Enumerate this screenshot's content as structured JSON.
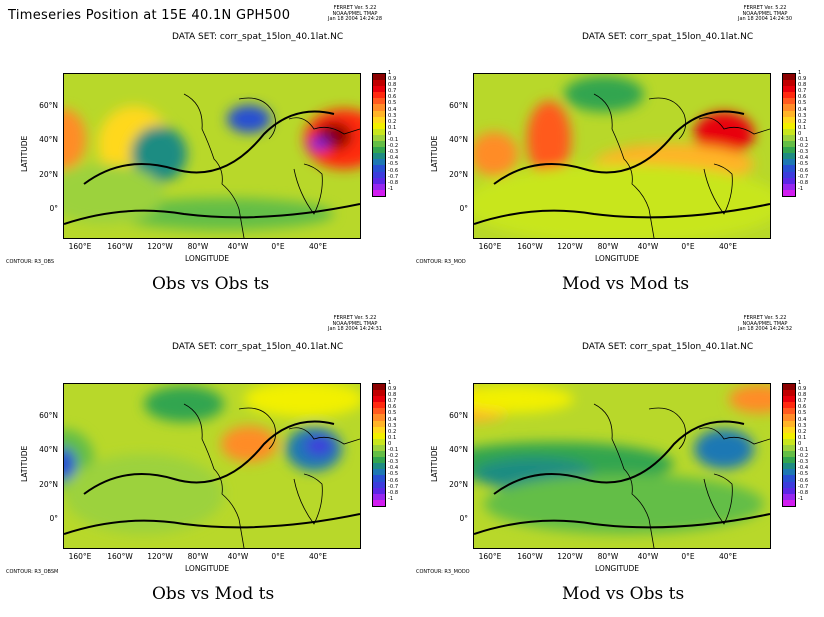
{
  "title": "Timeseries Position at 15E 40.1N GPH500",
  "colorbar": {
    "labels": [
      "1",
      "0.9",
      "0.8",
      "0.7",
      "0.6",
      "0.5",
      "0.4",
      "0.3",
      "0.2",
      "0.1",
      "0",
      "-0.1",
      "-0.2",
      "-0.3",
      "-0.4",
      "-0.5",
      "-0.6",
      "-0.7",
      "-0.8",
      "-1"
    ],
    "colors": [
      "#8b0000",
      "#c00000",
      "#e8000a",
      "#ff2a10",
      "#ff5a1e",
      "#ff8c28",
      "#ffb428",
      "#ffd81e",
      "#f2f000",
      "#c8e61e",
      "#9cd23c",
      "#64be46",
      "#32a550",
      "#1e8c82",
      "#1e78b4",
      "#2850d2",
      "#3c3cdc",
      "#5a28e6",
      "#9628f0",
      "#d21ef0"
    ]
  },
  "panels": [
    {
      "id": "obs_obs",
      "ferret": "FERRET Ver. 5.22",
      "org": "NOAA/PMEL TMAP",
      "time": "Jan 18 2004 14:24:28",
      "dataset": "DATA SET: corr_spat_15lon_40.1lat.NC",
      "ylabel": "LATITUDE",
      "xlabel": "LONGITUDE",
      "lat_ticks": [
        "60°N",
        "40°N",
        "20°N",
        "0°"
      ],
      "lon_ticks": [
        "160°E",
        "160°W",
        "120°W",
        "80°W",
        "40°W",
        "0°E",
        "40°E"
      ],
      "contour": "CONTOUR: R3_OBS",
      "caption": "Obs vs Obs ts"
    },
    {
      "id": "mod_mod",
      "ferret": "FERRET Ver. 5.22",
      "org": "NOAA/PMEL TMAP",
      "time": "Jan 18 2004 14:24:30",
      "dataset": "DATA SET: corr_spat_15lon_40.1lat.NC",
      "ylabel": "LATITUDE",
      "xlabel": "LONGITUDE",
      "lat_ticks": [
        "60°N",
        "40°N",
        "20°N",
        "0°"
      ],
      "lon_ticks": [
        "160°E",
        "160°W",
        "120°W",
        "80°W",
        "40°W",
        "0°E",
        "40°E"
      ],
      "contour": "CONTOUR: R3_MOD",
      "caption": "Mod vs Mod ts"
    },
    {
      "id": "obs_mod",
      "ferret": "FERRET Ver. 5.22",
      "org": "NOAA/PMEL TMAP",
      "time": "Jan 18 2004 14:24:31",
      "dataset": "DATA SET: corr_spat_15lon_40.1lat.NC",
      "ylabel": "LATITUDE",
      "xlabel": "LONGITUDE",
      "lat_ticks": [
        "60°N",
        "40°N",
        "20°N",
        "0°"
      ],
      "lon_ticks": [
        "160°E",
        "160°W",
        "120°W",
        "80°W",
        "40°W",
        "0°E",
        "40°E"
      ],
      "contour": "CONTOUR: R3_OBSM",
      "caption": "Obs vs Mod ts"
    },
    {
      "id": "mod_obs",
      "ferret": "FERRET Ver. 5.22",
      "org": "NOAA/PMEL TMAP",
      "time": "Jan 18 2004 14:24:32",
      "dataset": "DATA SET: corr_spat_15lon_40.1lat.NC",
      "ylabel": "LATITUDE",
      "xlabel": "LONGITUDE",
      "lat_ticks": [
        "60°N",
        "40°N",
        "20°N",
        "0°"
      ],
      "lon_ticks": [
        "160°E",
        "160°W",
        "120°W",
        "80°W",
        "40°W",
        "0°E",
        "40°E"
      ],
      "contour": "CONTOUR: R3_MODO",
      "caption": "Mod vs Obs ts"
    }
  ]
}
